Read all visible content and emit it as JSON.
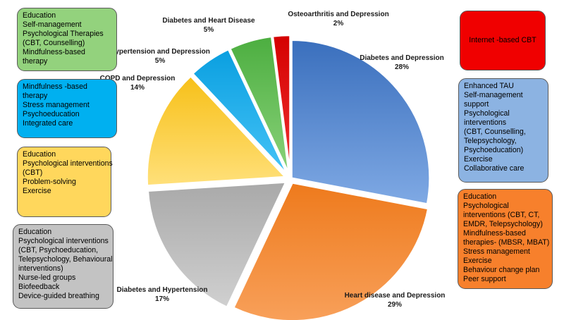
{
  "chart_data": {
    "type": "pie",
    "slices": [
      {
        "label": "Diabetes and Depression",
        "pct_text": "28%",
        "value": 28,
        "color": "#4a7fc9",
        "gradient_light": "#7fa9e4",
        "gradient_dark": "#3a6fbd"
      },
      {
        "label": "Heart disease and Depression",
        "pct_text": "29%",
        "value": 29,
        "color": "#f58a2c",
        "gradient_light": "#f8a05a",
        "gradient_dark": "#ee7a1c"
      },
      {
        "label": "Diabetes and Hypertension",
        "pct_text": "17%",
        "value": 17,
        "color": "#bdbdbd",
        "gradient_light": "#d0d0d0",
        "gradient_dark": "#a9a9a9"
      },
      {
        "label": "COPD and Depression",
        "pct_text": "14%",
        "value": 14,
        "color": "#ffd24d",
        "gradient_light": "#ffe07a",
        "gradient_dark": "#f7c018"
      },
      {
        "label": "Hypertension and Depression",
        "pct_text": "5%",
        "value": 5,
        "color": "#1fb0f0",
        "gradient_light": "#45c3f7",
        "gradient_dark": "#0a9fe0"
      },
      {
        "label": "Diabetes and Heart Disease",
        "pct_text": "5%",
        "value": 5,
        "color": "#5fbe56",
        "gradient_light": "#8ad27a",
        "gradient_dark": "#4cae40"
      },
      {
        "label": "Osteoarthritis and Depression",
        "pct_text": "2%",
        "value": 2,
        "color": "#e60000",
        "gradient_light": "#f03030",
        "gradient_dark": "#d40000"
      }
    ]
  },
  "boxes": {
    "edu_green": [
      "Education",
      "Self-management",
      "Psychological Therapies",
      "(CBT, Counselling)",
      "Mindfulness-based",
      "therapy"
    ],
    "mind_blue": [
      "Mindfulness -based",
      "therapy",
      "Stress management",
      "Psychoeducation",
      "Integrated care"
    ],
    "edu_yellow": [
      "Education",
      "Psychological interventions",
      "(CBT)",
      "Problem-solving",
      "Exercise"
    ],
    "edu_gray": [
      "Education",
      "Psychological interventions",
      "(CBT, Psychoeducation,",
      "Telepsychology, Behavioural",
      "interventions)",
      "Nurse-led groups",
      "Biofeedback",
      "Device-guided breathing"
    ],
    "icbt_red": [
      "Internet -based CBT"
    ],
    "tau_blue": [
      "Enhanced TAU",
      "Self-management",
      "support",
      "Psychological",
      "interventions",
      "(CBT, Counselling,",
      "Telepsychology,",
      "Psychoeducation)",
      "Exercise",
      "Collaborative care"
    ],
    "edu_orange": [
      "Education",
      "Psychological",
      "interventions (CBT, CT,",
      "EMDR, Telepsychology)",
      " Mindfulness-based",
      "therapies- (MBSR, MBAT)",
      "Stress management",
      "Exercise",
      "Behaviour change plan",
      "Peer support"
    ]
  }
}
